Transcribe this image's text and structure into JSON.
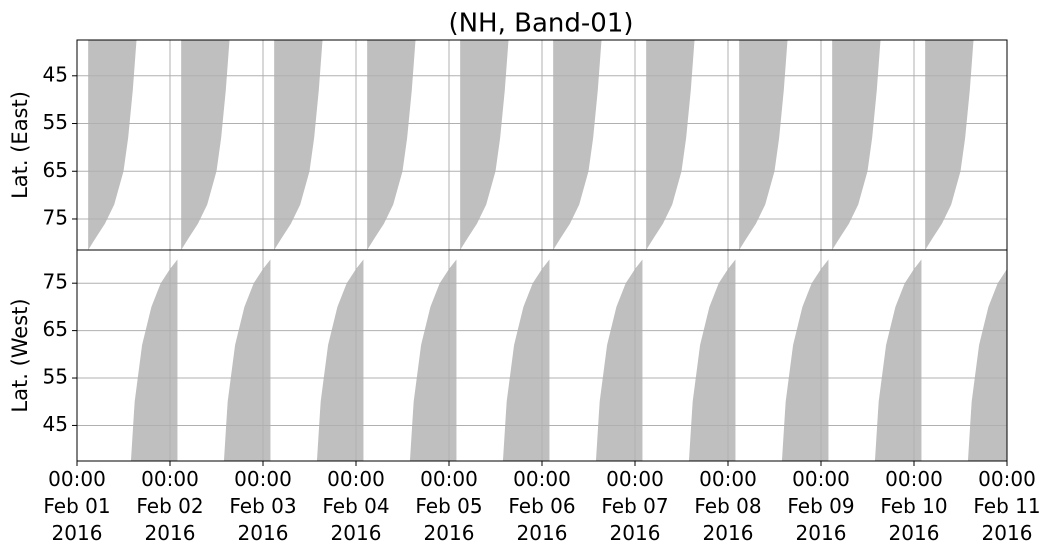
{
  "chart_data": {
    "type": "area",
    "title": "(NH, Band-01)",
    "xlim": [
      0,
      10
    ],
    "xticks": [
      {
        "value": 0,
        "label": "00:00\nFeb 01\n2016"
      },
      {
        "value": 1,
        "label": "00:00\nFeb 02\n2016"
      },
      {
        "value": 2,
        "label": "00:00\nFeb 03\n2016"
      },
      {
        "value": 3,
        "label": "00:00\nFeb 04\n2016"
      },
      {
        "value": 4,
        "label": "00:00\nFeb 05\n2016"
      },
      {
        "value": 5,
        "label": "00:00\nFeb 06\n2016"
      },
      {
        "value": 6,
        "label": "00:00\nFeb 07\n2016"
      },
      {
        "value": 7,
        "label": "00:00\nFeb 08\n2016"
      },
      {
        "value": 8,
        "label": "00:00\nFeb 09\n2016"
      },
      {
        "value": 9,
        "label": "00:00\nFeb 10\n2016"
      },
      {
        "value": 10,
        "label": "00:00\nFeb 11\n2016"
      }
    ],
    "grid": true,
    "panels": [
      {
        "ylabel": "Lat. (East)",
        "ylim": [
          81.5,
          37.5
        ],
        "yticks": [
          45,
          55,
          65,
          75
        ],
        "series": [
          {
            "color": "#bfbfbf",
            "x": [
              0.12,
              0.2,
              0.3,
              0.4,
              0.5,
              0.55,
              0.6,
              0.64,
              null,
              1.12,
              1.2,
              1.3,
              1.4,
              1.5,
              1.55,
              1.6,
              1.64,
              null,
              2.12,
              2.2,
              2.3,
              2.4,
              2.5,
              2.55,
              2.6,
              2.64,
              null,
              3.12,
              3.2,
              3.3,
              3.4,
              3.5,
              3.55,
              3.6,
              3.64,
              null,
              4.12,
              4.2,
              4.3,
              4.4,
              4.5,
              4.55,
              4.6,
              4.64,
              null,
              5.12,
              5.2,
              5.3,
              5.4,
              5.5,
              5.55,
              5.6,
              5.64,
              null,
              6.12,
              6.2,
              6.3,
              6.4,
              6.5,
              6.55,
              6.6,
              6.64,
              null,
              7.12,
              7.2,
              7.3,
              7.4,
              7.5,
              7.55,
              7.6,
              7.64,
              null,
              8.12,
              8.2,
              8.3,
              8.4,
              8.5,
              8.55,
              8.6,
              8.64,
              null,
              9.12,
              9.2,
              9.3,
              9.4,
              9.5,
              9.55,
              9.6,
              9.64
            ],
            "values": [
              81.5,
              79,
              76,
              72,
              65,
              58,
              48,
              37.5,
              null,
              81.5,
              79,
              76,
              72,
              65,
              58,
              48,
              37.5,
              null,
              81.5,
              79,
              76,
              72,
              65,
              58,
              48,
              37.5,
              null,
              81.5,
              79,
              76,
              72,
              65,
              58,
              48,
              37.5,
              null,
              81.5,
              79,
              76,
              72,
              65,
              58,
              48,
              37.5,
              null,
              81.5,
              79,
              76,
              72,
              65,
              58,
              48,
              37.5,
              null,
              81.5,
              79,
              76,
              72,
              65,
              58,
              48,
              37.5,
              null,
              81.5,
              79,
              76,
              72,
              65,
              58,
              48,
              37.5,
              null,
              81.5,
              79,
              76,
              72,
              65,
              58,
              48,
              37.5,
              null,
              81.5,
              79,
              76,
              72,
              65,
              58,
              48,
              37.5
            ]
          }
        ]
      },
      {
        "ylabel": "Lat. (West)",
        "ylim": [
          37.5,
          82
        ],
        "yticks": [
          45,
          55,
          65,
          75
        ],
        "series": [
          {
            "color": "#bfbfbf",
            "x": [
              0.58,
              0.62,
              0.7,
              0.8,
              0.9,
              1.0,
              1.08,
              null,
              1.58,
              1.62,
              1.7,
              1.8,
              1.9,
              2.0,
              2.08,
              null,
              2.58,
              2.62,
              2.7,
              2.8,
              2.9,
              3.0,
              3.08,
              null,
              3.58,
              3.62,
              3.7,
              3.8,
              3.9,
              4.0,
              4.08,
              null,
              4.58,
              4.62,
              4.7,
              4.8,
              4.9,
              5.0,
              5.08,
              null,
              5.58,
              5.62,
              5.7,
              5.8,
              5.9,
              6.0,
              6.08,
              null,
              6.58,
              6.62,
              6.7,
              6.8,
              6.9,
              7.0,
              7.08,
              null,
              7.58,
              7.62,
              7.7,
              7.8,
              7.9,
              8.0,
              8.08,
              null,
              8.58,
              8.62,
              8.7,
              8.8,
              8.9,
              9.0,
              9.08,
              null,
              9.58,
              9.62,
              9.7,
              9.8,
              9.9,
              10.0
            ],
            "values": [
              37.5,
              50,
              62,
              70,
              75,
              78,
              80,
              null,
              37.5,
              50,
              62,
              70,
              75,
              78,
              80,
              null,
              37.5,
              50,
              62,
              70,
              75,
              78,
              80,
              null,
              37.5,
              50,
              62,
              70,
              75,
              78,
              80,
              null,
              37.5,
              50,
              62,
              70,
              75,
              78,
              80,
              null,
              37.5,
              50,
              62,
              70,
              75,
              78,
              80,
              null,
              37.5,
              50,
              62,
              70,
              75,
              78,
              80,
              null,
              37.5,
              50,
              62,
              70,
              75,
              78,
              80,
              null,
              37.5,
              50,
              62,
              70,
              75,
              78,
              80,
              null,
              37.5,
              50,
              62,
              70,
              75,
              78
            ]
          }
        ]
      }
    ]
  }
}
